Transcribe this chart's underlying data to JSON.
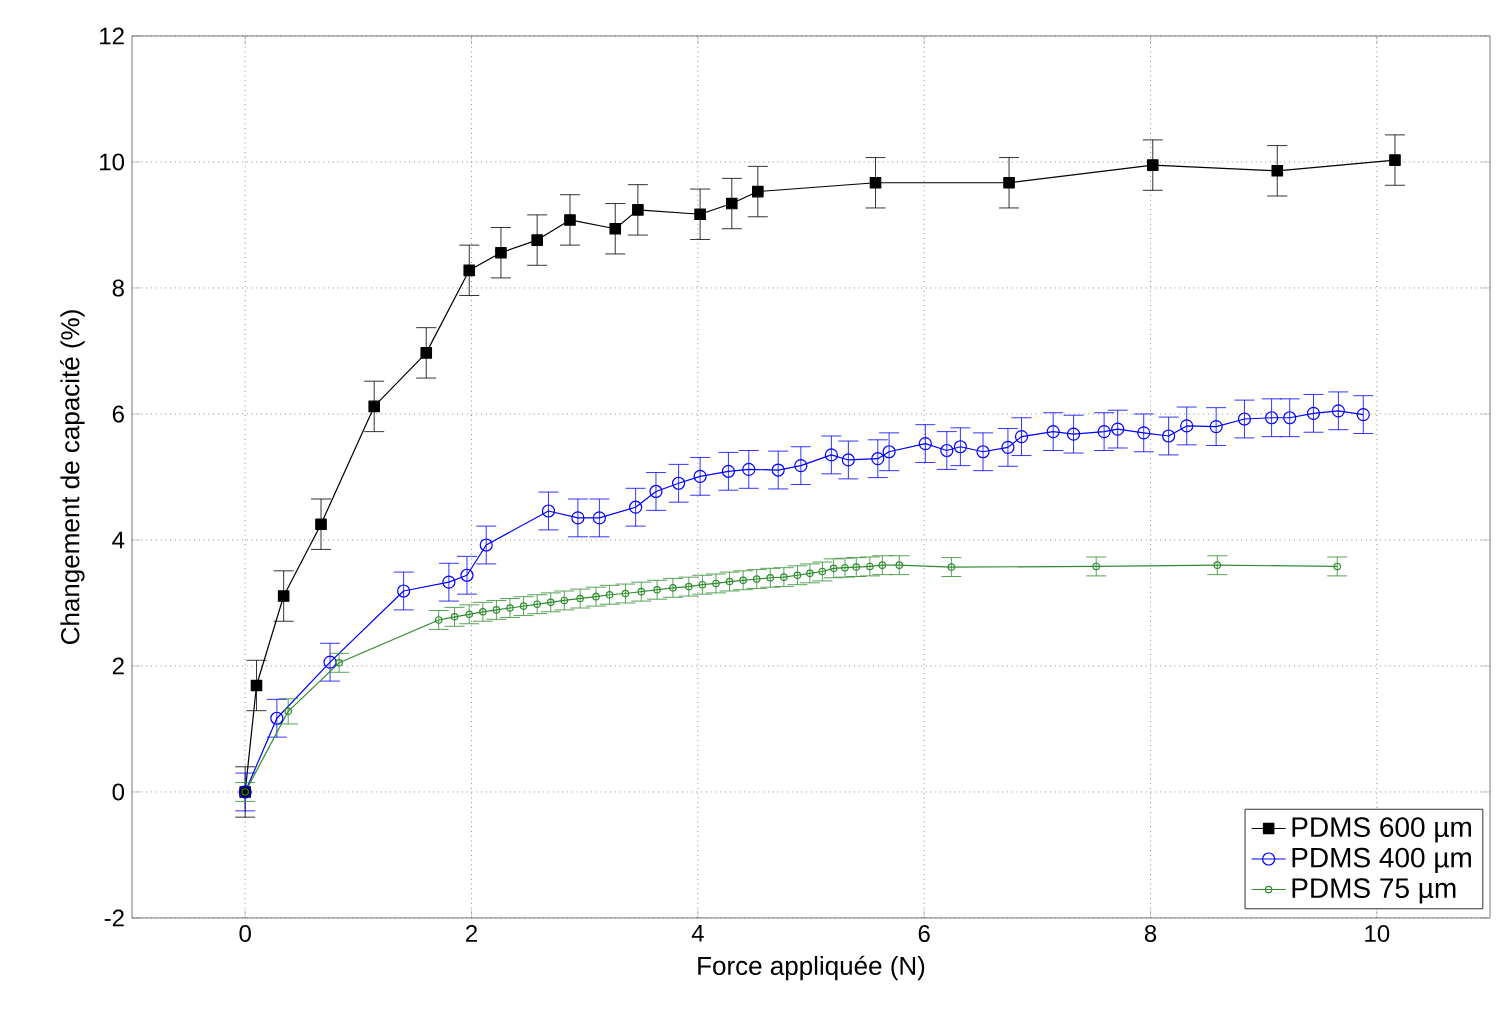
{
  "chart_data": {
    "type": "line",
    "xlabel": "Force appliquée (N)",
    "ylabel": "Changement de capacité (%)",
    "xlim": [
      -1,
      11
    ],
    "ylim": [
      -2,
      12
    ],
    "xticks": [
      0,
      2,
      4,
      6,
      8,
      10
    ],
    "yticks": [
      -2,
      0,
      2,
      4,
      6,
      8,
      10,
      12
    ],
    "grid": true,
    "legend": "bottom right",
    "line_style": "solid",
    "series": [
      {
        "name": "PDMS 600 µm",
        "color": "#000000",
        "marker": "square",
        "x": [
          0,
          0.1,
          0.34,
          0.67,
          1.14,
          1.6,
          1.98,
          2.26,
          2.58,
          2.87,
          3.27,
          3.47,
          4.02,
          4.3,
          4.53,
          5.57,
          6.75,
          8.02,
          9.12,
          10.16
        ],
        "values": [
          0,
          1.69,
          3.11,
          4.25,
          6.12,
          6.97,
          8.28,
          8.56,
          8.76,
          9.08,
          8.94,
          9.24,
          9.17,
          9.34,
          9.53,
          9.67,
          9.67,
          9.95,
          9.86,
          10.03
        ],
        "errors": [
          0.4,
          0.4,
          0.4,
          0.4,
          0.4,
          0.4,
          0.4,
          0.4,
          0.4,
          0.4,
          0.4,
          0.4,
          0.4,
          0.4,
          0.4,
          0.4,
          0.4,
          0.4,
          0.4,
          0.4
        ]
      },
      {
        "name": "PDMS 400 µm",
        "color": "#0000ff",
        "marker": "circle",
        "x": [
          0,
          0.28,
          0.75,
          1.4,
          1.8,
          1.96,
          2.13,
          2.68,
          2.94,
          3.13,
          3.45,
          3.63,
          3.83,
          4.02,
          4.27,
          4.45,
          4.71,
          4.91,
          5.18,
          5.33,
          5.59,
          5.69,
          6.01,
          6.2,
          6.32,
          6.52,
          6.74,
          6.86,
          7.14,
          7.32,
          7.59,
          7.71,
          7.94,
          8.16,
          8.32,
          8.58,
          8.83,
          9.07,
          9.23,
          9.44,
          9.66,
          9.88
        ],
        "values": [
          0,
          1.17,
          2.06,
          3.19,
          3.33,
          3.44,
          3.92,
          4.46,
          4.35,
          4.35,
          4.52,
          4.77,
          4.9,
          5.01,
          5.09,
          5.12,
          5.11,
          5.18,
          5.35,
          5.27,
          5.29,
          5.4,
          5.53,
          5.42,
          5.48,
          5.4,
          5.47,
          5.64,
          5.72,
          5.68,
          5.72,
          5.76,
          5.7,
          5.65,
          5.81,
          5.8,
          5.92,
          5.94,
          5.94,
          6.01,
          6.05,
          5.99
        ],
        "errors": [
          0.3,
          0.3,
          0.3,
          0.3,
          0.3,
          0.3,
          0.3,
          0.3,
          0.3,
          0.3,
          0.3,
          0.3,
          0.3,
          0.3,
          0.3,
          0.3,
          0.3,
          0.3,
          0.3,
          0.3,
          0.3,
          0.3,
          0.3,
          0.3,
          0.3,
          0.3,
          0.3,
          0.3,
          0.3,
          0.3,
          0.3,
          0.3,
          0.3,
          0.3,
          0.3,
          0.3,
          0.3,
          0.3,
          0.3,
          0.3,
          0.3,
          0.3
        ]
      },
      {
        "name": "PDMS 75 µm",
        "color": "#2e8b2e",
        "marker": "circle",
        "x": [
          0,
          0.38,
          0.83,
          1.71,
          1.85,
          1.98,
          2.1,
          2.22,
          2.34,
          2.46,
          2.58,
          2.7,
          2.82,
          2.96,
          3.1,
          3.22,
          3.36,
          3.5,
          3.64,
          3.78,
          3.92,
          4.04,
          4.16,
          4.28,
          4.4,
          4.52,
          4.64,
          4.76,
          4.88,
          4.99,
          5.1,
          5.2,
          5.3,
          5.4,
          5.52,
          5.63,
          5.78,
          6.24,
          7.52,
          8.59,
          9.65
        ],
        "values": [
          0,
          1.28,
          2.05,
          2.73,
          2.78,
          2.82,
          2.86,
          2.89,
          2.92,
          2.95,
          2.98,
          3.01,
          3.04,
          3.07,
          3.1,
          3.13,
          3.15,
          3.18,
          3.21,
          3.24,
          3.26,
          3.29,
          3.31,
          3.34,
          3.36,
          3.38,
          3.4,
          3.41,
          3.44,
          3.47,
          3.5,
          3.55,
          3.56,
          3.57,
          3.58,
          3.6,
          3.6,
          3.57,
          3.58,
          3.6,
          3.58
        ],
        "errors": [
          0.15,
          0.2,
          0.15,
          0.15,
          0.15,
          0.15,
          0.15,
          0.15,
          0.15,
          0.15,
          0.15,
          0.15,
          0.15,
          0.15,
          0.15,
          0.15,
          0.15,
          0.15,
          0.15,
          0.15,
          0.15,
          0.15,
          0.15,
          0.15,
          0.15,
          0.15,
          0.15,
          0.15,
          0.15,
          0.15,
          0.15,
          0.15,
          0.15,
          0.15,
          0.15,
          0.15,
          0.15,
          0.15,
          0.15,
          0.15,
          0.15
        ]
      }
    ]
  }
}
